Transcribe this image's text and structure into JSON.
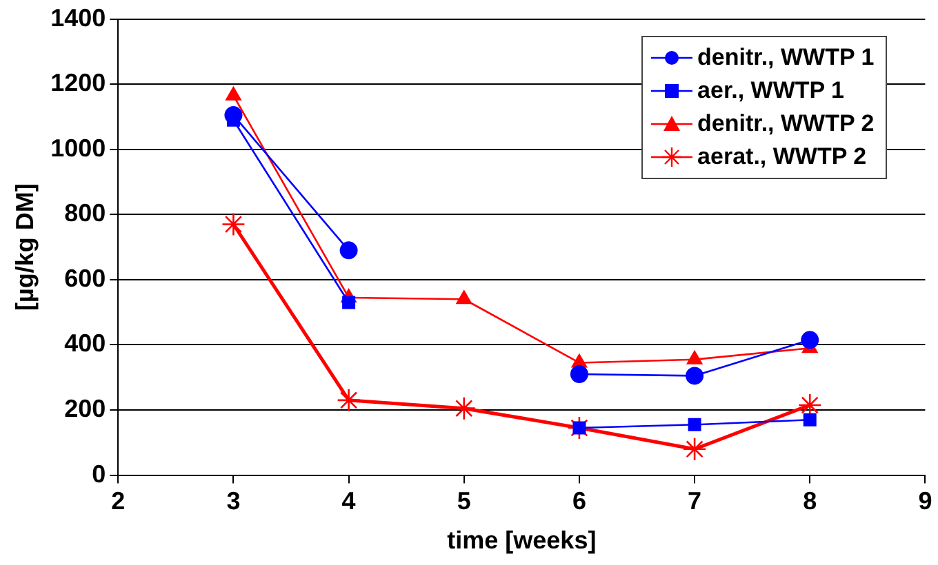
{
  "chart_data": {
    "type": "line",
    "xlabel": "time [weeks]",
    "ylabel": "[µg/kg DM]",
    "x": [
      3,
      4,
      5,
      6,
      7,
      8
    ],
    "xlim": [
      2,
      9
    ],
    "xticks": [
      2,
      3,
      4,
      5,
      6,
      7,
      8,
      9
    ],
    "ylim": [
      0,
      1400
    ],
    "yticks": [
      0,
      200,
      400,
      600,
      800,
      1000,
      1200,
      1400
    ],
    "grid": "y",
    "legend": "top right",
    "series": [
      {
        "name": "denitr., WWTP 1",
        "color": "#0000ff",
        "marker": "circle",
        "values": [
          1105,
          690,
          null,
          310,
          305,
          415
        ]
      },
      {
        "name": "aer., WWTP 1",
        "color": "#0000ff",
        "marker": "square",
        "values": [
          1090,
          530,
          null,
          145,
          155,
          170
        ]
      },
      {
        "name": "denitr., WWTP 2",
        "color": "#ff0000",
        "marker": "triangle",
        "values": [
          1165,
          545,
          540,
          345,
          355,
          390
        ]
      },
      {
        "name": "aerat., WWTP 2",
        "color": "#ff0000",
        "marker": "cross",
        "values": [
          770,
          230,
          205,
          145,
          80,
          215
        ]
      }
    ]
  }
}
